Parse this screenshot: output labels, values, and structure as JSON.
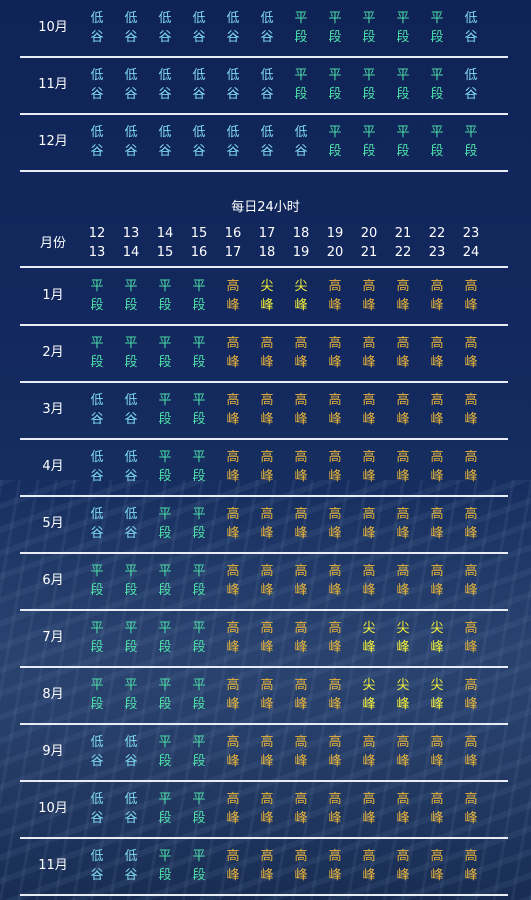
{
  "chars": {
    "low": [
      "低",
      "谷"
    ],
    "flat": [
      "平",
      "段"
    ],
    "high": [
      "高",
      "峰"
    ],
    "peak": [
      "尖",
      "峰"
    ]
  },
  "colors": {
    "low": "#7fd9f2",
    "flat": "#4ee0a8",
    "high": "#e8b43a",
    "peak": "#f5f03a"
  },
  "top_table": [
    {
      "month": "10月",
      "cells": [
        "low",
        "low",
        "low",
        "low",
        "low",
        "low",
        "flat",
        "flat",
        "flat",
        "flat",
        "flat",
        "low"
      ]
    },
    {
      "month": "11月",
      "cells": [
        "low",
        "low",
        "low",
        "low",
        "low",
        "low",
        "flat",
        "flat",
        "flat",
        "flat",
        "flat",
        "low"
      ]
    },
    {
      "month": "12月",
      "cells": [
        "low",
        "low",
        "low",
        "low",
        "low",
        "low",
        "low",
        "flat",
        "flat",
        "flat",
        "flat",
        "flat"
      ]
    }
  ],
  "section_title": "每日24小时",
  "header": {
    "label": "月份",
    "hours": [
      [
        "12",
        "13"
      ],
      [
        "13",
        "14"
      ],
      [
        "14",
        "15"
      ],
      [
        "15",
        "16"
      ],
      [
        "16",
        "17"
      ],
      [
        "17",
        "18"
      ],
      [
        "18",
        "19"
      ],
      [
        "19",
        "20"
      ],
      [
        "20",
        "21"
      ],
      [
        "21",
        "22"
      ],
      [
        "22",
        "23"
      ],
      [
        "23",
        "24"
      ]
    ]
  },
  "bottom_table": [
    {
      "month": "1月",
      "cells": [
        "flat",
        "flat",
        "flat",
        "flat",
        "high",
        "peak",
        "peak",
        "high",
        "high",
        "high",
        "high",
        "high"
      ]
    },
    {
      "month": "2月",
      "cells": [
        "flat",
        "flat",
        "flat",
        "flat",
        "high",
        "high",
        "high",
        "high",
        "high",
        "high",
        "high",
        "high"
      ]
    },
    {
      "month": "3月",
      "cells": [
        "low",
        "low",
        "flat",
        "flat",
        "high",
        "high",
        "high",
        "high",
        "high",
        "high",
        "high",
        "high"
      ]
    },
    {
      "month": "4月",
      "cells": [
        "low",
        "low",
        "flat",
        "flat",
        "high",
        "high",
        "high",
        "high",
        "high",
        "high",
        "high",
        "high"
      ]
    },
    {
      "month": "5月",
      "cells": [
        "low",
        "low",
        "flat",
        "flat",
        "high",
        "high",
        "high",
        "high",
        "high",
        "high",
        "high",
        "high"
      ]
    },
    {
      "month": "6月",
      "cells": [
        "flat",
        "flat",
        "flat",
        "flat",
        "high",
        "high",
        "high",
        "high",
        "high",
        "high",
        "high",
        "high"
      ]
    },
    {
      "month": "7月",
      "cells": [
        "flat",
        "flat",
        "flat",
        "flat",
        "high",
        "high",
        "high",
        "high",
        "peak",
        "peak",
        "peak",
        "high"
      ]
    },
    {
      "month": "8月",
      "cells": [
        "flat",
        "flat",
        "flat",
        "flat",
        "high",
        "high",
        "high",
        "high",
        "peak",
        "peak",
        "peak",
        "high"
      ]
    },
    {
      "month": "9月",
      "cells": [
        "low",
        "low",
        "flat",
        "flat",
        "high",
        "high",
        "high",
        "high",
        "high",
        "high",
        "high",
        "high"
      ]
    },
    {
      "month": "10月",
      "cells": [
        "low",
        "low",
        "flat",
        "flat",
        "high",
        "high",
        "high",
        "high",
        "high",
        "high",
        "high",
        "high"
      ]
    },
    {
      "month": "11月",
      "cells": [
        "low",
        "low",
        "flat",
        "flat",
        "high",
        "high",
        "high",
        "high",
        "high",
        "high",
        "high",
        "high"
      ]
    }
  ]
}
